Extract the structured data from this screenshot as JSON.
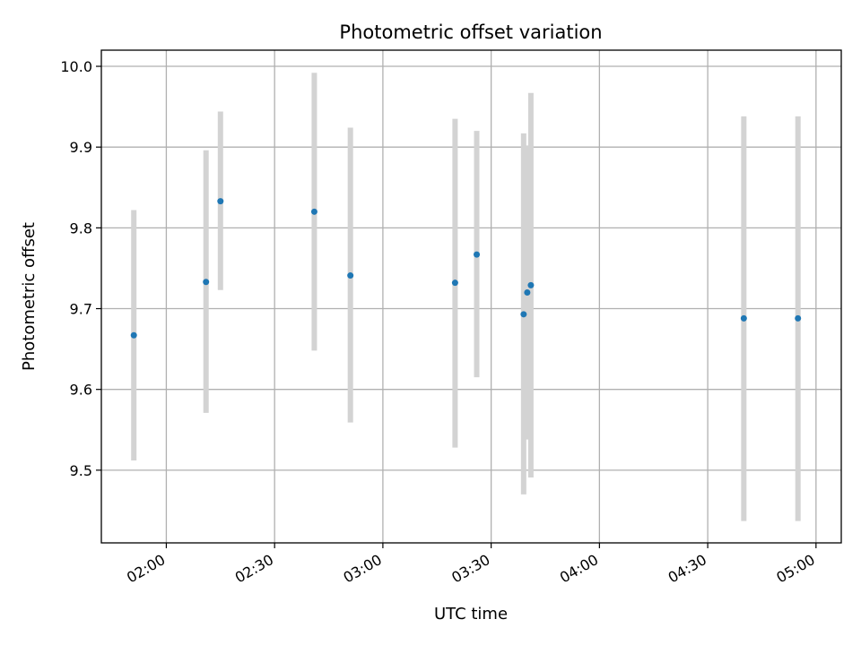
{
  "chart_data": {
    "type": "scatter",
    "title": "Photometric offset variation",
    "xlabel": "UTC time",
    "ylabel": "Photometric offset",
    "xlim": [
      "01:42",
      "05:07"
    ],
    "ylim": [
      9.41,
      10.02
    ],
    "x_ticks": [
      "02:00",
      "02:30",
      "03:00",
      "03:30",
      "04:00",
      "04:30",
      "05:00"
    ],
    "y_ticks": [
      9.5,
      9.6,
      9.7,
      9.8,
      9.9,
      10.0
    ],
    "grid": true,
    "legend": "none",
    "colors": {
      "point": "#1f77b4",
      "errorbar": "#d3d3d3",
      "grid": "#b0b0b0"
    },
    "points": [
      {
        "x": "01:51",
        "y": 9.667,
        "ylo": 9.512,
        "yhi": 9.822
      },
      {
        "x": "02:11",
        "y": 9.733,
        "ylo": 9.571,
        "yhi": 9.896
      },
      {
        "x": "02:15",
        "y": 9.833,
        "ylo": 9.723,
        "yhi": 9.944
      },
      {
        "x": "02:41",
        "y": 9.82,
        "ylo": 9.648,
        "yhi": 9.992
      },
      {
        "x": "02:51",
        "y": 9.741,
        "ylo": 9.559,
        "yhi": 9.924
      },
      {
        "x": "03:20",
        "y": 9.732,
        "ylo": 9.528,
        "yhi": 9.935
      },
      {
        "x": "03:26",
        "y": 9.767,
        "ylo": 9.615,
        "yhi": 9.92
      },
      {
        "x": "03:39",
        "y": 9.693,
        "ylo": 9.47,
        "yhi": 9.917
      },
      {
        "x": "03:40",
        "y": 9.72,
        "ylo": 9.538,
        "yhi": 9.902
      },
      {
        "x": "03:41",
        "y": 9.729,
        "ylo": 9.491,
        "yhi": 9.967
      },
      {
        "x": "04:40",
        "y": 9.688,
        "ylo": 9.437,
        "yhi": 9.938
      },
      {
        "x": "04:55",
        "y": 9.688,
        "ylo": 9.437,
        "yhi": 9.938
      }
    ]
  }
}
